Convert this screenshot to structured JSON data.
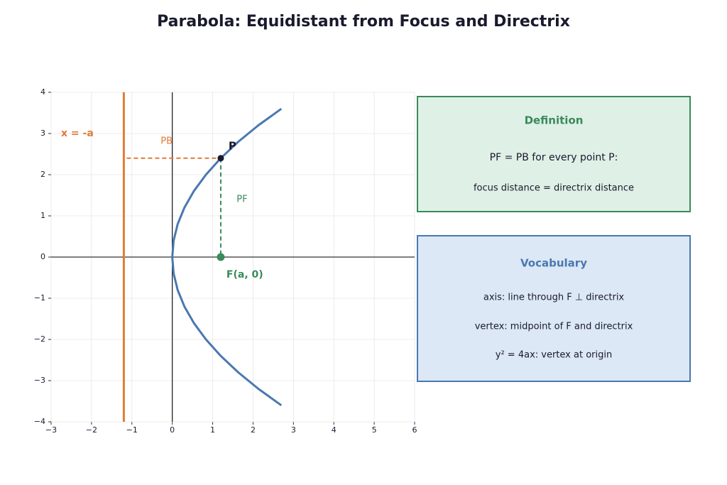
{
  "chart_data": {
    "type": "line",
    "title": "Parabola:  Equidistant from Focus and Directrix",
    "xlim": [
      -3,
      6
    ],
    "ylim": [
      -4,
      4
    ],
    "xticks": [
      {
        "value": -3,
        "label": "−3"
      },
      {
        "value": -2,
        "label": "−2"
      },
      {
        "value": -1,
        "label": "−1"
      },
      0,
      1,
      2,
      3,
      4,
      5,
      6
    ],
    "yticks": [
      {
        "value": -4,
        "label": "−4"
      },
      {
        "value": -3,
        "label": "−3"
      },
      {
        "value": -2,
        "label": "−2"
      },
      {
        "value": -1,
        "label": "−1"
      },
      0,
      1,
      2,
      3,
      4
    ],
    "grid": true,
    "series": [
      {
        "color": "#4a78b0",
        "x": [
          2.7,
          2.1333,
          1.6333,
          1.2,
          0.8333,
          0.5333,
          0.3,
          0.1333,
          0.0333,
          0,
          0.0333,
          0.1333,
          0.3,
          0.5333,
          0.8333,
          1.2,
          1.6333,
          2.1333,
          2.7
        ],
        "values": [
          -3.6,
          -3.2,
          -2.8,
          -2.4,
          -2.0,
          -1.6,
          -1.2,
          -0.8,
          -0.4,
          0,
          0.4,
          0.8,
          1.2,
          1.6,
          2.0,
          2.4,
          2.8,
          3.2,
          3.6
        ]
      }
    ],
    "directrix": {
      "x": -1.2,
      "color": "#e07b39",
      "label": "x = -a"
    },
    "point": {
      "x": 1.2,
      "y": 2.4,
      "label": "P",
      "color": "#1a1a2e"
    },
    "focus": {
      "x": 1.2,
      "y": 0,
      "label": "F(a, 0)",
      "color": "#3a8a5c"
    },
    "pb_label": "PB",
    "pf_label": "PF",
    "definition": {
      "title": "Definition",
      "lines": [
        "PF = PB for every point P:",
        "focus distance = directrix distance"
      ]
    },
    "vocabulary": {
      "title": "Vocabulary",
      "lines": [
        "axis: line through F ⊥ directrix",
        "vertex: midpoint of F and directrix",
        "y² = 4ax: vertex at origin"
      ]
    }
  }
}
